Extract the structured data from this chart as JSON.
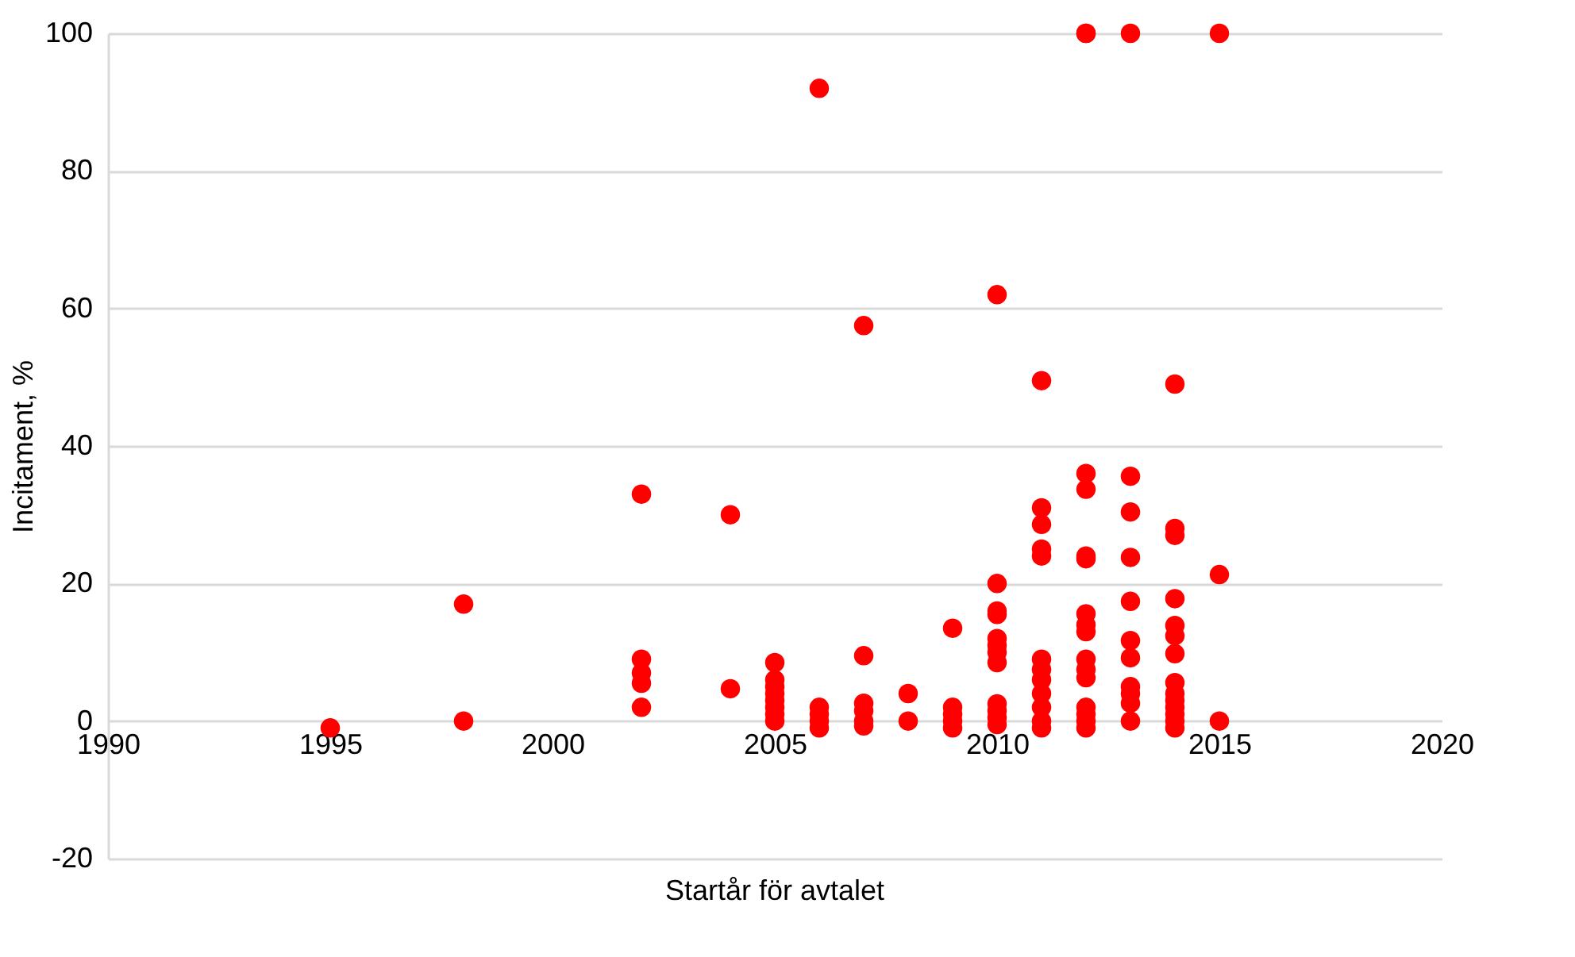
{
  "chart_data": {
    "type": "scatter",
    "xlabel": "Startår för avtalet",
    "ylabel": "Incitament, %",
    "xlim": [
      1990,
      2020
    ],
    "xticks": [
      1990,
      1995,
      2000,
      2005,
      2010,
      2015,
      2020
    ],
    "ylim": [
      -20,
      100
    ],
    "yticks": [
      -20,
      0,
      20,
      40,
      60,
      80,
      100
    ],
    "grid": "y",
    "marker": "circle",
    "legend": false,
    "series": [
      {
        "color": "#ff0000",
        "x": [
          1995,
          1998,
          1998,
          2002,
          2002,
          2002,
          2002,
          2002,
          2004,
          2004,
          2005,
          2005,
          2005,
          2005,
          2005,
          2005,
          2005,
          2005,
          2006,
          2006,
          2006,
          2006,
          2006,
          2007,
          2007,
          2007,
          2007,
          2007,
          2007,
          2008,
          2008,
          2009,
          2009,
          2009,
          2009,
          2009,
          2010,
          2010,
          2010,
          2010,
          2010,
          2010,
          2010,
          2010,
          2010,
          2010,
          2010,
          2010,
          2011,
          2011,
          2011,
          2011,
          2011,
          2011,
          2011,
          2011,
          2011,
          2011,
          2011,
          2011,
          2012,
          2012,
          2012,
          2012,
          2012,
          2012,
          2012,
          2012,
          2012,
          2012,
          2012,
          2012,
          2012,
          2012,
          2012,
          2012,
          2013,
          2013,
          2013,
          2013,
          2013,
          2013,
          2013,
          2013,
          2013,
          2013,
          2013,
          2014,
          2014,
          2014,
          2014,
          2014,
          2014,
          2014,
          2014,
          2014,
          2014,
          2014,
          2014,
          2014,
          2014,
          2015,
          2015,
          2015
        ],
        "values": [
          -1,
          17,
          0,
          33,
          9,
          7,
          5.5,
          2,
          30,
          4.7,
          8.5,
          6,
          5,
          4,
          3,
          2,
          1,
          0,
          92,
          2,
          1,
          0,
          -1,
          57.5,
          9.5,
          2.6,
          1.5,
          0,
          -0.7,
          4,
          0,
          13.5,
          2,
          1,
          0,
          -1,
          62,
          20,
          16,
          15.5,
          12,
          11,
          10,
          8.5,
          2.5,
          1.5,
          0.5,
          -0.5,
          49.5,
          31,
          28.6,
          25,
          24,
          9,
          7.5,
          6,
          4,
          2,
          0,
          -1,
          100,
          100,
          36,
          33.7,
          24,
          23.6,
          15.6,
          14,
          13,
          9,
          7.5,
          6.3,
          2,
          1,
          0,
          -1,
          100,
          35.6,
          30.4,
          23.8,
          17.4,
          11.7,
          9.2,
          5,
          4,
          2.6,
          0,
          49,
          28,
          27,
          17.8,
          13.9,
          12.4,
          9.8,
          5.6,
          4,
          3,
          2,
          1,
          0,
          -1,
          100,
          21.3,
          0
        ]
      }
    ]
  }
}
